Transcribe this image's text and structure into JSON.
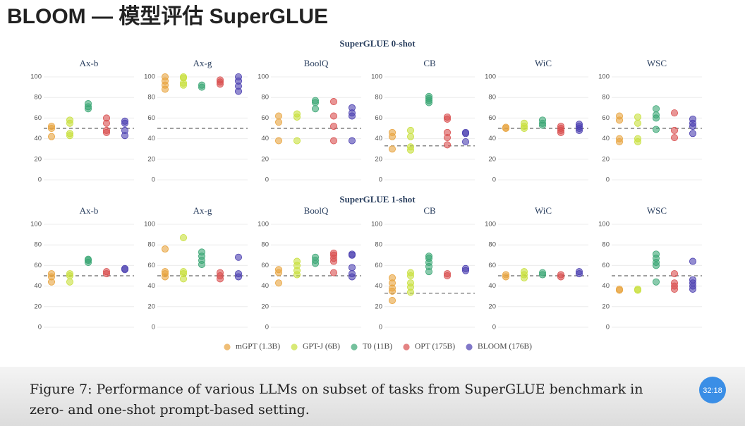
{
  "title": "BLOOM — 模型评估 SuperGLUE",
  "panel_titles": [
    "SuperGLUE 0-shot",
    "SuperGLUE 1-shot"
  ],
  "legend": [
    {
      "name": "mGPT (1.3B)",
      "color": "#e8a33d"
    },
    {
      "name": "GPT-J (6B)",
      "color": "#c8e03c"
    },
    {
      "name": "T0 (11B)",
      "color": "#3aa674"
    },
    {
      "name": "OPT (175B)",
      "color": "#d94f4f"
    },
    {
      "name": "BLOOM (176B)",
      "color": "#4b3fb0"
    }
  ],
  "chart_data": [
    {
      "type": "scatter",
      "title": "Ax-b",
      "ylim": [
        0,
        100
      ],
      "yticks": [
        0,
        20,
        40,
        60,
        80,
        100
      ],
      "baseline": 50,
      "series": [
        {
          "values": [
            42,
            50,
            52
          ]
        },
        {
          "values": [
            43,
            45,
            55,
            58
          ]
        },
        {
          "values": [
            69,
            71,
            74
          ]
        },
        {
          "values": [
            46,
            48,
            55,
            60
          ]
        },
        {
          "values": [
            43,
            48,
            55,
            57
          ]
        }
      ]
    },
    {
      "type": "scatter",
      "title": "Ax-g",
      "ylim": [
        0,
        100
      ],
      "yticks": [
        0,
        20,
        40,
        60,
        80,
        100
      ],
      "baseline": 50,
      "series": [
        {
          "values": [
            88,
            92,
            96,
            100
          ]
        },
        {
          "values": [
            92,
            94,
            99,
            100
          ]
        },
        {
          "values": [
            90,
            92
          ]
        },
        {
          "values": [
            93,
            95,
            97
          ]
        },
        {
          "values": [
            86,
            91,
            96,
            100
          ]
        }
      ]
    },
    {
      "type": "scatter",
      "title": "BoolQ",
      "ylim": [
        0,
        100
      ],
      "yticks": [
        0,
        20,
        40,
        60,
        80,
        100
      ],
      "baseline": 50,
      "series": [
        {
          "values": [
            38,
            56,
            62
          ]
        },
        {
          "values": [
            38,
            61,
            64
          ]
        },
        {
          "values": [
            69,
            75,
            77
          ]
        },
        {
          "values": [
            38,
            52,
            62,
            76
          ]
        },
        {
          "values": [
            38,
            62,
            65,
            70
          ]
        }
      ]
    },
    {
      "type": "scatter",
      "title": "CB",
      "ylim": [
        0,
        100
      ],
      "yticks": [
        0,
        20,
        40,
        60,
        80,
        100
      ],
      "baseline": 33,
      "series": [
        {
          "values": [
            30,
            42,
            46
          ]
        },
        {
          "values": [
            29,
            32,
            42,
            48
          ]
        },
        {
          "values": [
            75,
            77,
            79,
            81
          ]
        },
        {
          "values": [
            34,
            41,
            46,
            59,
            61
          ]
        },
        {
          "values": [
            37,
            45,
            46
          ]
        }
      ]
    },
    {
      "type": "scatter",
      "title": "WiC",
      "ylim": [
        0,
        100
      ],
      "yticks": [
        0,
        20,
        40,
        60,
        80,
        100
      ],
      "baseline": 50,
      "series": [
        {
          "values": [
            50,
            51
          ]
        },
        {
          "values": [
            50,
            52,
            55
          ]
        },
        {
          "values": [
            53,
            55,
            58
          ]
        },
        {
          "values": [
            46,
            48,
            50,
            52
          ]
        },
        {
          "values": [
            48,
            50,
            52,
            54
          ]
        }
      ]
    },
    {
      "type": "scatter",
      "title": "WSC",
      "ylim": [
        0,
        100
      ],
      "yticks": [
        0,
        20,
        40,
        60,
        80,
        100
      ],
      "baseline": 50,
      "series": [
        {
          "values": [
            37,
            40,
            58,
            62
          ]
        },
        {
          "values": [
            37,
            40,
            55,
            61
          ]
        },
        {
          "values": [
            49,
            60,
            63,
            69
          ]
        },
        {
          "values": [
            41,
            48,
            65
          ]
        },
        {
          "values": [
            45,
            52,
            55,
            59
          ]
        }
      ]
    },
    {
      "type": "scatter",
      "title": "Ax-b",
      "ylim": [
        0,
        100
      ],
      "yticks": [
        0,
        20,
        40,
        60,
        80,
        100
      ],
      "baseline": 50,
      "series": [
        {
          "values": [
            44,
            49,
            52
          ]
        },
        {
          "values": [
            44,
            50,
            52
          ]
        },
        {
          "values": [
            63,
            65,
            66
          ]
        },
        {
          "values": [
            52,
            54
          ]
        },
        {
          "values": [
            56,
            57
          ]
        }
      ]
    },
    {
      "type": "scatter",
      "title": "Ax-g",
      "ylim": [
        0,
        100
      ],
      "yticks": [
        0,
        20,
        40,
        60,
        80,
        100
      ],
      "baseline": 50,
      "series": [
        {
          "values": [
            49,
            52,
            54,
            76
          ]
        },
        {
          "values": [
            47,
            52,
            54,
            87
          ]
        },
        {
          "values": [
            61,
            65,
            69,
            73
          ]
        },
        {
          "values": [
            47,
            50,
            53
          ]
        },
        {
          "values": [
            49,
            52,
            68
          ]
        }
      ]
    },
    {
      "type": "scatter",
      "title": "BoolQ",
      "ylim": [
        0,
        100
      ],
      "yticks": [
        0,
        20,
        40,
        60,
        80,
        100
      ],
      "baseline": 50,
      "series": [
        {
          "values": [
            43,
            53,
            56
          ]
        },
        {
          "values": [
            51,
            55,
            60,
            64
          ]
        },
        {
          "values": [
            62,
            65,
            68
          ]
        },
        {
          "values": [
            53,
            64,
            67,
            70,
            72
          ]
        },
        {
          "values": [
            49,
            52,
            58,
            70,
            71
          ]
        }
      ]
    },
    {
      "type": "scatter",
      "title": "CB",
      "ylim": [
        0,
        100
      ],
      "yticks": [
        0,
        20,
        40,
        60,
        80,
        100
      ],
      "baseline": 33,
      "series": [
        {
          "values": [
            26,
            35,
            38,
            43,
            48
          ]
        },
        {
          "values": [
            34,
            39,
            43,
            50,
            53
          ]
        },
        {
          "values": [
            54,
            59,
            63,
            67,
            69
          ]
        },
        {
          "values": [
            50,
            52
          ]
        },
        {
          "values": [
            55,
            57
          ]
        }
      ]
    },
    {
      "type": "scatter",
      "title": "WiC",
      "ylim": [
        0,
        100
      ],
      "yticks": [
        0,
        20,
        40,
        60,
        80,
        100
      ],
      "baseline": 50,
      "series": [
        {
          "values": [
            49,
            51
          ]
        },
        {
          "values": [
            48,
            51,
            54
          ]
        },
        {
          "values": [
            51,
            53
          ]
        },
        {
          "values": [
            49,
            51
          ]
        },
        {
          "values": [
            52,
            54
          ]
        }
      ]
    },
    {
      "type": "scatter",
      "title": "WSC",
      "ylim": [
        0,
        100
      ],
      "yticks": [
        0,
        20,
        40,
        60,
        80,
        100
      ],
      "baseline": 50,
      "series": [
        {
          "values": [
            36,
            37
          ]
        },
        {
          "values": [
            36,
            37
          ]
        },
        {
          "values": [
            44,
            60,
            63,
            67,
            71
          ]
        },
        {
          "values": [
            37,
            40,
            43,
            52
          ]
        },
        {
          "values": [
            37,
            40,
            43,
            46,
            64
          ]
        }
      ]
    }
  ],
  "caption": [
    "Figure 7: Performance of various LLMs on subset of tasks from SuperGLUE benchmark in",
    "zero- and one-shot prompt-based setting."
  ],
  "timer": "32:18"
}
